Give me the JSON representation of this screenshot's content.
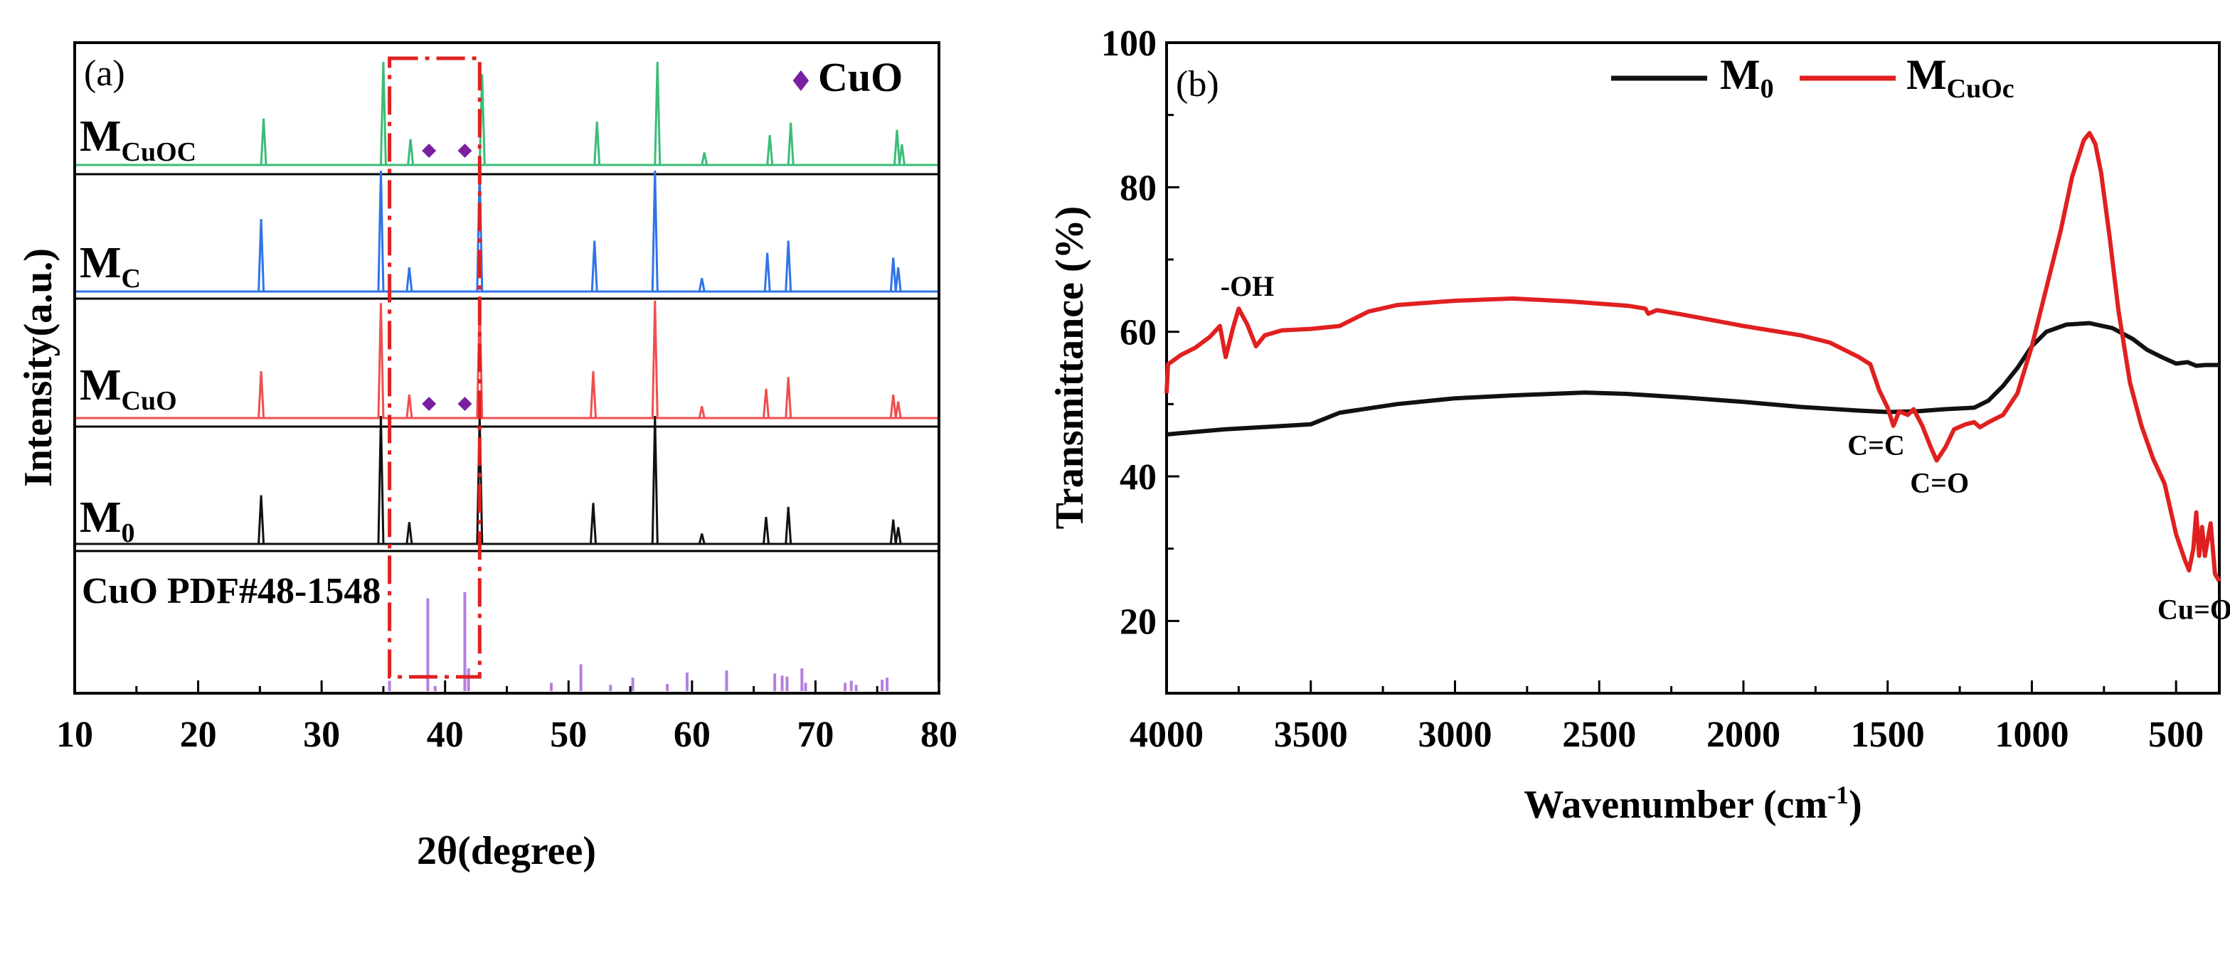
{
  "chart_data": [
    {
      "type": "line",
      "panel_label": "(a)",
      "title": "",
      "xlabel": "2θ(degree)",
      "ylabel": "Intensity(a.u.)",
      "xlim": [
        10,
        80
      ],
      "xticks": [
        10,
        20,
        30,
        40,
        50,
        60,
        70,
        80
      ],
      "legend": {
        "symbol": "♦",
        "label": "CuO",
        "color": "#7a1fa0"
      },
      "colors": {
        "M_CuOC": "#3bbd77",
        "M_C": "#2f74e8",
        "M_CuO": "#ef4f4f",
        "M_0": "#111111",
        "ref": "#b47fe0",
        "box": "#e02020",
        "marker": "#7a1fa0"
      },
      "highlight_box": {
        "x_range": [
          35.5,
          42.8
        ],
        "style": "dash-dot"
      },
      "series": [
        {
          "name": "M_CuOC",
          "label_main": "M",
          "label_sub": "CuOC",
          "color": "#3bbd77",
          "peaks": [
            [
              25.3,
              0.45
            ],
            [
              35.0,
              1.0
            ],
            [
              37.2,
              0.25
            ],
            [
              43.0,
              0.88
            ],
            [
              52.3,
              0.42
            ],
            [
              57.2,
              1.0
            ],
            [
              61.0,
              0.12
            ],
            [
              66.3,
              0.29
            ],
            [
              68.0,
              0.41
            ],
            [
              76.6,
              0.34
            ],
            [
              77.0,
              0.2
            ]
          ],
          "cuo_markers": [
            38.7,
            41.6
          ]
        },
        {
          "name": "M_C",
          "label_main": "M",
          "label_sub": "C",
          "color": "#2f74e8",
          "peaks": [
            [
              25.1,
              0.6
            ],
            [
              34.8,
              1.0
            ],
            [
              37.1,
              0.2
            ],
            [
              42.8,
              1.0
            ],
            [
              52.1,
              0.42
            ],
            [
              57.0,
              1.0
            ],
            [
              60.8,
              0.11
            ],
            [
              66.1,
              0.32
            ],
            [
              67.8,
              0.42
            ],
            [
              76.3,
              0.28
            ],
            [
              76.7,
              0.2
            ]
          ],
          "cuo_markers": []
        },
        {
          "name": "M_CuO",
          "label_main": "M",
          "label_sub": "CuO",
          "color": "#ef4f4f",
          "peaks": [
            [
              25.1,
              0.4
            ],
            [
              34.8,
              0.98
            ],
            [
              37.1,
              0.2
            ],
            [
              42.8,
              1.0
            ],
            [
              52.0,
              0.4
            ],
            [
              57.0,
              1.0
            ],
            [
              60.8,
              0.1
            ],
            [
              66.0,
              0.25
            ],
            [
              67.8,
              0.35
            ],
            [
              76.3,
              0.2
            ],
            [
              76.7,
              0.14
            ]
          ],
          "cuo_markers": [
            38.7,
            41.6
          ]
        },
        {
          "name": "M_0",
          "label_main": "M",
          "label_sub": "0",
          "color": "#111111",
          "peaks": [
            [
              25.1,
              0.38
            ],
            [
              34.8,
              1.0
            ],
            [
              37.1,
              0.17
            ],
            [
              42.8,
              1.0
            ],
            [
              52.0,
              0.32
            ],
            [
              57.0,
              1.0
            ],
            [
              60.8,
              0.08
            ],
            [
              66.0,
              0.21
            ],
            [
              67.8,
              0.29
            ],
            [
              76.3,
              0.19
            ],
            [
              76.7,
              0.13
            ]
          ],
          "cuo_markers": []
        }
      ],
      "reference": {
        "label": "CuO PDF#48-1548",
        "color": "#b47fe0",
        "lines": [
          [
            35.5,
            0.1
          ],
          [
            38.6,
            0.9
          ],
          [
            39.2,
            0.05
          ],
          [
            41.6,
            0.96
          ],
          [
            41.9,
            0.22
          ],
          [
            48.6,
            0.08
          ],
          [
            51.0,
            0.26
          ],
          [
            53.4,
            0.06
          ],
          [
            55.2,
            0.13
          ],
          [
            58.0,
            0.07
          ],
          [
            59.6,
            0.18
          ],
          [
            62.8,
            0.2
          ],
          [
            66.7,
            0.17
          ],
          [
            67.3,
            0.15
          ],
          [
            67.7,
            0.14
          ],
          [
            68.9,
            0.22
          ],
          [
            69.2,
            0.08
          ],
          [
            72.4,
            0.08
          ],
          [
            72.9,
            0.1
          ],
          [
            73.3,
            0.06
          ],
          [
            75.4,
            0.11
          ],
          [
            75.8,
            0.13
          ],
          [
            80.0,
            0.09
          ]
        ]
      }
    },
    {
      "type": "line",
      "panel_label": "(b)",
      "title": "",
      "xlabel_main": "Wavenumber (cm",
      "xlabel_sup": "-1",
      "xlabel_end": ")",
      "ylabel": "Transmittance (%)",
      "xlim": [
        4000,
        350
      ],
      "ylim": [
        10,
        100
      ],
      "xticks": [
        4000,
        3500,
        3000,
        2500,
        2000,
        1500,
        1000,
        500
      ],
      "yticks": [
        20,
        40,
        60,
        80,
        100
      ],
      "series": [
        {
          "name": "M_0",
          "label_main": "M",
          "label_sub": "0",
          "color": "#111111",
          "points": [
            [
              4000,
              45.8
            ],
            [
              3800,
              46.5
            ],
            [
              3500,
              47.2
            ],
            [
              3400,
              48.8
            ],
            [
              3200,
              50.0
            ],
            [
              3000,
              50.8
            ],
            [
              2800,
              51.2
            ],
            [
              2550,
              51.6
            ],
            [
              2400,
              51.4
            ],
            [
              2200,
              50.9
            ],
            [
              2000,
              50.3
            ],
            [
              1800,
              49.6
            ],
            [
              1600,
              49.1
            ],
            [
              1500,
              48.9
            ],
            [
              1400,
              49.0
            ],
            [
              1300,
              49.3
            ],
            [
              1200,
              49.5
            ],
            [
              1150,
              50.5
            ],
            [
              1100,
              52.5
            ],
            [
              1050,
              55.0
            ],
            [
              1000,
              58.0
            ],
            [
              950,
              60.0
            ],
            [
              880,
              61.0
            ],
            [
              800,
              61.2
            ],
            [
              720,
              60.5
            ],
            [
              650,
              59.0
            ],
            [
              600,
              57.5
            ],
            [
              550,
              56.5
            ],
            [
              500,
              55.6
            ],
            [
              460,
              55.8
            ],
            [
              430,
              55.3
            ],
            [
              400,
              55.4
            ],
            [
              350,
              55.4
            ]
          ]
        },
        {
          "name": "M_CuOc",
          "label_main": "M",
          "label_sub": "CuOc",
          "color": "#e02020",
          "points": [
            [
              4000,
              51.5
            ],
            [
              3995,
              55.5
            ],
            [
              3950,
              56.8
            ],
            [
              3900,
              57.8
            ],
            [
              3850,
              59.3
            ],
            [
              3815,
              60.8
            ],
            [
              3795,
              56.5
            ],
            [
              3770,
              60.5
            ],
            [
              3750,
              63.2
            ],
            [
              3720,
              61.0
            ],
            [
              3690,
              58.0
            ],
            [
              3660,
              59.5
            ],
            [
              3600,
              60.2
            ],
            [
              3500,
              60.4
            ],
            [
              3400,
              60.8
            ],
            [
              3300,
              62.8
            ],
            [
              3200,
              63.7
            ],
            [
              3000,
              64.3
            ],
            [
              2800,
              64.6
            ],
            [
              2600,
              64.2
            ],
            [
              2400,
              63.6
            ],
            [
              2340,
              63.2
            ],
            [
              2330,
              62.5
            ],
            [
              2300,
              63.0
            ],
            [
              2200,
              62.3
            ],
            [
              2000,
              60.8
            ],
            [
              1800,
              59.5
            ],
            [
              1700,
              58.5
            ],
            [
              1600,
              56.5
            ],
            [
              1560,
              55.5
            ],
            [
              1530,
              52.0
            ],
            [
              1500,
              49.5
            ],
            [
              1480,
              47.0
            ],
            [
              1460,
              49.0
            ],
            [
              1430,
              48.5
            ],
            [
              1410,
              49.3
            ],
            [
              1380,
              47.0
            ],
            [
              1350,
              44.0
            ],
            [
              1330,
              42.2
            ],
            [
              1300,
              44.0
            ],
            [
              1270,
              46.5
            ],
            [
              1230,
              47.2
            ],
            [
              1200,
              47.5
            ],
            [
              1180,
              46.8
            ],
            [
              1150,
              47.5
            ],
            [
              1100,
              48.5
            ],
            [
              1050,
              51.5
            ],
            [
              1000,
              58.0
            ],
            [
              950,
              66.0
            ],
            [
              900,
              74.0
            ],
            [
              860,
              81.5
            ],
            [
              820,
              86.5
            ],
            [
              800,
              87.5
            ],
            [
              780,
              86.0
            ],
            [
              760,
              82.0
            ],
            [
              730,
              73.0
            ],
            [
              700,
              63.0
            ],
            [
              660,
              53.0
            ],
            [
              620,
              47.0
            ],
            [
              580,
              42.5
            ],
            [
              540,
              39.0
            ],
            [
              500,
              32.0
            ],
            [
              470,
              28.5
            ],
            [
              455,
              27.0
            ],
            [
              440,
              30.0
            ],
            [
              430,
              35.0
            ],
            [
              420,
              29.0
            ],
            [
              410,
              33.0
            ],
            [
              400,
              29.0
            ],
            [
              380,
              33.5
            ],
            [
              365,
              26.5
            ],
            [
              350,
              25.5
            ]
          ]
        }
      ],
      "annotations": [
        {
          "text": "-OH",
          "x": 3720,
          "y": 65.0
        },
        {
          "text": "C=C",
          "x": 1540,
          "y": 43.0
        },
        {
          "text": "C=O",
          "x": 1320,
          "y": 37.8
        },
        {
          "text": "Cu=O",
          "x": 435,
          "y": 20.3
        }
      ]
    }
  ]
}
